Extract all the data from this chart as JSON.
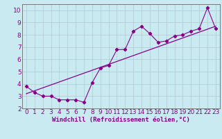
{
  "xlabel": "Windchill (Refroidissement éolien,°C)",
  "bg_color": "#c8eaf0",
  "grid_color": "#b0c8d0",
  "line_color": "#880088",
  "xlim": [
    -0.5,
    23.5
  ],
  "ylim": [
    2,
    10.5
  ],
  "yticks": [
    2,
    3,
    4,
    5,
    6,
    7,
    8,
    9,
    10
  ],
  "xticks": [
    0,
    1,
    2,
    3,
    4,
    5,
    6,
    7,
    8,
    9,
    10,
    11,
    12,
    13,
    14,
    15,
    16,
    17,
    18,
    19,
    20,
    21,
    22,
    23
  ],
  "scatter_x": [
    0,
    1,
    2,
    3,
    4,
    5,
    6,
    7,
    8,
    9,
    10,
    11,
    12,
    13,
    14,
    15,
    16,
    17,
    18,
    19,
    20,
    21,
    22,
    23
  ],
  "scatter_y": [
    3.8,
    3.3,
    3.0,
    3.0,
    2.7,
    2.7,
    2.7,
    2.5,
    4.1,
    5.3,
    5.5,
    6.8,
    6.8,
    8.3,
    8.7,
    8.1,
    7.4,
    7.5,
    7.9,
    8.0,
    8.3,
    8.5,
    10.2,
    8.5
  ],
  "fit_x": [
    0,
    23
  ],
  "fit_y": [
    3.2,
    8.7
  ],
  "xlabel_fontsize": 6.5,
  "tick_fontsize": 6.5
}
